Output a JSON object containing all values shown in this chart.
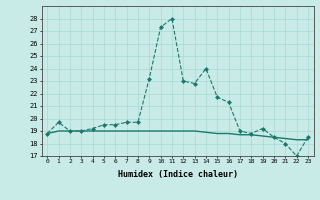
{
  "xlabel": "Humidex (Indice chaleur)",
  "x": [
    0,
    1,
    2,
    3,
    4,
    5,
    6,
    7,
    8,
    9,
    10,
    11,
    12,
    13,
    14,
    15,
    16,
    17,
    18,
    19,
    20,
    21,
    22,
    23
  ],
  "line1": [
    18.8,
    19.7,
    19.0,
    19.0,
    19.2,
    19.5,
    19.5,
    19.7,
    19.7,
    23.2,
    27.3,
    28.0,
    23.0,
    22.8,
    24.0,
    21.7,
    21.3,
    19.0,
    18.8,
    19.2,
    18.5,
    18.0,
    17.0,
    18.5
  ],
  "line2": [
    18.8,
    19.0,
    19.0,
    19.0,
    19.0,
    19.0,
    19.0,
    19.0,
    19.0,
    19.0,
    19.0,
    19.0,
    19.0,
    19.0,
    18.9,
    18.8,
    18.8,
    18.7,
    18.7,
    18.6,
    18.5,
    18.4,
    18.3,
    18.3
  ],
  "ylim": [
    17,
    29
  ],
  "xlim": [
    -0.5,
    23.5
  ],
  "yticks": [
    17,
    18,
    19,
    20,
    21,
    22,
    23,
    24,
    25,
    26,
    27,
    28
  ],
  "xticks": [
    0,
    1,
    2,
    3,
    4,
    5,
    6,
    7,
    8,
    9,
    10,
    11,
    12,
    13,
    14,
    15,
    16,
    17,
    18,
    19,
    20,
    21,
    22,
    23
  ],
  "line_color": "#1a7a6a",
  "bg_color": "#c8ebe8",
  "grid_color": "#a8d8d4"
}
